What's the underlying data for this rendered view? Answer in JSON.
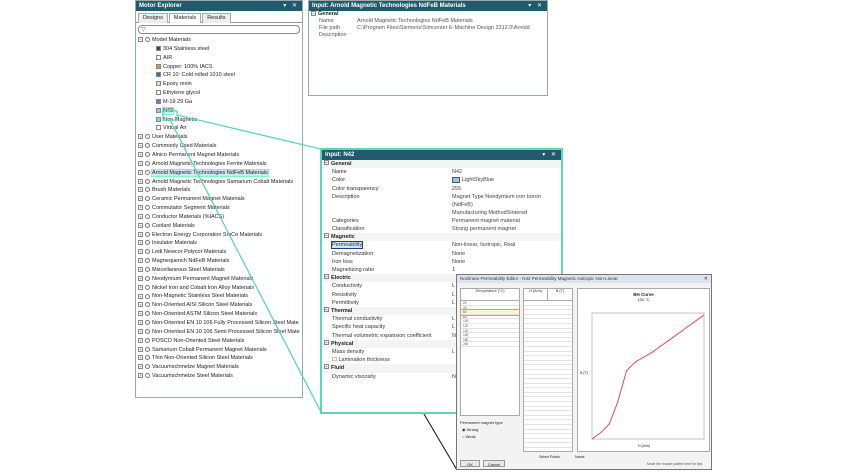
{
  "explorer": {
    "title": "Motor Explorer",
    "controls": "▾ ✕",
    "tabs": [
      "Designs",
      "Materials",
      "Results"
    ],
    "items": [
      {
        "label": "Model Materials",
        "level": 0,
        "expander": "−",
        "icon": "gear"
      },
      {
        "label": "304 Stainless steel",
        "level": 2,
        "swatch": "#444444"
      },
      {
        "label": "AIR",
        "level": 2,
        "swatch": "#ffffff"
      },
      {
        "label": "Copper: 100% IACS",
        "level": 2,
        "swatch": "#d19a4a"
      },
      {
        "label": "CR 10: Cold rolled 1010 steel",
        "level": 2,
        "swatch": "#1a7bb0"
      },
      {
        "label": "Epoxy resin",
        "level": 2,
        "swatch": "#e6e0c8"
      },
      {
        "label": "Ethylene glycol",
        "level": 2,
        "swatch": "#ffffff"
      },
      {
        "label": "M-19 29 Ga",
        "level": 2,
        "swatch": "#8a6cc0"
      },
      {
        "label": "N42",
        "level": 2,
        "swatch": "#8ec9ea",
        "selected": true
      },
      {
        "label": "Non-Magnetic",
        "level": 2,
        "swatch": "#6ee0d8"
      },
      {
        "label": "Virtual Air",
        "level": 2,
        "swatch": "#ffffff"
      },
      {
        "label": "User Materials",
        "level": 0,
        "expander": "+",
        "icon": "gear"
      },
      {
        "label": "Commonly Used Materials",
        "level": 0,
        "expander": "+",
        "icon": "gear"
      },
      {
        "label": "Alnico Permanent Magnet Materials",
        "level": 0,
        "expander": "+",
        "icon": "gear"
      },
      {
        "label": "Arnold Magnetic Technologies Ferrite Materials",
        "level": 0,
        "expander": "+",
        "icon": "gear"
      },
      {
        "label": "Arnold Magnetic Technologies NdFeB Materials",
        "level": 0,
        "expander": "+",
        "icon": "gear",
        "selected": true
      },
      {
        "label": "Arnold Magnetic Technologies Samarium Cobalt Materials",
        "level": 0,
        "expander": "+",
        "icon": "gear"
      },
      {
        "label": "Brush Materials",
        "level": 0,
        "expander": "+",
        "icon": "gear"
      },
      {
        "label": "Ceramic Permanent Magnet Materials",
        "level": 0,
        "expander": "+",
        "icon": "gear"
      },
      {
        "label": "Commutator Segment Materials",
        "level": 0,
        "expander": "+",
        "icon": "gear"
      },
      {
        "label": "Conductor Materials (%IACS)",
        "level": 0,
        "expander": "+",
        "icon": "gear"
      },
      {
        "label": "Coolant Materials",
        "level": 0,
        "expander": "+",
        "icon": "gear"
      },
      {
        "label": "Electron Energy Corporation SmCo Materials",
        "level": 0,
        "expander": "+",
        "icon": "gear"
      },
      {
        "label": "Insulator Materials",
        "level": 0,
        "expander": "+",
        "icon": "gear"
      },
      {
        "label": "Lodi Newcor Polycor Materials",
        "level": 0,
        "expander": "+",
        "icon": "gear"
      },
      {
        "label": "Magnequench NdFeB Materials",
        "level": 0,
        "expander": "+",
        "icon": "gear"
      },
      {
        "label": "Miscellaneous Steel Materials",
        "level": 0,
        "expander": "+",
        "icon": "gear"
      },
      {
        "label": "Neodymium Permanent Magnet Materials",
        "level": 0,
        "expander": "+",
        "icon": "gear"
      },
      {
        "label": "Nickel Iron and Cobalt Iron Alloy Materials",
        "level": 0,
        "expander": "+",
        "icon": "gear"
      },
      {
        "label": "Non-Magnetic Stainless Steel Materials",
        "level": 0,
        "expander": "+",
        "icon": "gear"
      },
      {
        "label": "Non-Oriented AISI Silicon Steel Materials",
        "level": 0,
        "expander": "+",
        "icon": "gear"
      },
      {
        "label": "Non-Oriented ASTM Silicon Steel Materials",
        "level": 0,
        "expander": "+",
        "icon": "gear"
      },
      {
        "label": "Non-Oriented EN 10 106 Fully Processed Silicon Steel Mate",
        "level": 0,
        "expander": "+",
        "icon": "gear"
      },
      {
        "label": "Non-Oriented EN 10 106 Semi Processed Silicon Steel Mate",
        "level": 0,
        "expander": "+",
        "icon": "gear"
      },
      {
        "label": "POSCO Non-Oriented Steel Materials",
        "level": 0,
        "expander": "+",
        "icon": "gear"
      },
      {
        "label": "Samarium Cobalt Permanent Magnet Materials",
        "level": 0,
        "expander": "+",
        "icon": "gear"
      },
      {
        "label": "Thin Non-Oriented Silicon Steel Materials",
        "level": 0,
        "expander": "+",
        "icon": "gear"
      },
      {
        "label": "Vacuumschmelze Magnet Materials",
        "level": 0,
        "expander": "+",
        "icon": "gear"
      },
      {
        "label": "Vacuumschmelze Steel Materials",
        "level": 0,
        "expander": "+",
        "icon": "gear"
      }
    ]
  },
  "input_top": {
    "title": "Input: Arnold Magnetic Technologies NdFeB Materials",
    "controls": "▾ ✕",
    "section": "General",
    "rows": [
      {
        "k": "Name",
        "v": "Arnold Magnetic Technologies NdFeB Materials"
      },
      {
        "k": "File path",
        "v": "C:\\Program Files\\Siemens\\Simcenter E-Machine Design 2312.0\\Arnold"
      },
      {
        "k": "Description",
        "v": ""
      }
    ]
  },
  "input_n42": {
    "title": "Input: N42",
    "controls": "▾ ✕",
    "rows": [
      {
        "group": "General"
      },
      {
        "k": "Name",
        "v": "N42"
      },
      {
        "k": "Color",
        "v": "LightSkyBlue",
        "swatch": "#8ec9ea"
      },
      {
        "k": "Color transparency",
        "v": "255"
      },
      {
        "k": "Description",
        "v": "Magnet Type Neodymium iron boron (NdFeB)",
        "v2": "Manufacturing MethodSintered"
      },
      {
        "k": "Categories",
        "v": "Permanent magnet material"
      },
      {
        "k": "Classification",
        "v": "Strong permanent magnet"
      },
      {
        "group": "Magnetic"
      },
      {
        "k": "Permeability",
        "v": "Non-linear, Isotropic, Real",
        "hl": true
      },
      {
        "k": "Demagnetization",
        "v": "None"
      },
      {
        "k": "Iron loss",
        "v": "None"
      },
      {
        "k": "Magnetizing ratio",
        "v": "1"
      },
      {
        "group": "Electric"
      },
      {
        "k": "Conductivity",
        "v": "L"
      },
      {
        "k": "Resistivity",
        "v": "L"
      },
      {
        "k": "Permittivity",
        "v": "L"
      },
      {
        "group": "Thermal"
      },
      {
        "k": "Thermal conductivity",
        "v": "L"
      },
      {
        "k": "Specific heat capacity",
        "v": "L"
      },
      {
        "k": "Thermal volumetric expansion coefficient",
        "v": "N"
      },
      {
        "group": "Physical"
      },
      {
        "k": "Mass density",
        "v": "L"
      },
      {
        "k": "Lamination thickness",
        "v": "",
        "check": true
      },
      {
        "group": "Fluid"
      },
      {
        "k": "Dynamic viscosity",
        "v": "N"
      }
    ]
  },
  "dialog": {
    "title": "Nonlinear Permeability Editor - N42 Permeability Magnetic Isotropic Non-Linear",
    "close": "✕",
    "temp_header": "Temperature (°C)",
    "temps": [
      "20",
      "40",
      "60",
      "80",
      "100",
      "120",
      "140",
      "160",
      "180",
      "200"
    ],
    "col1": "H (A/m)",
    "col2": "B (T)",
    "plot_title": "BH Curve",
    "plot_sub": "100 °C",
    "xlabel": "H (A/m)",
    "ylabel": "B (T)",
    "radio_label": "Permanent magnet type",
    "radio1": "Strong",
    "radio2": "Weak",
    "ok": "OK",
    "cancel": "Cancel",
    "select_label": "Select Points",
    "name_label": "Name",
    "footer_note": "Move the mouse pointer here for tips"
  },
  "chart_data": {
    "type": "line",
    "title": "BH Curve",
    "subtitle": "100 °C",
    "xlabel": "H (A/m)",
    "ylabel": "B (T)",
    "series": [
      {
        "values": [
          0,
          0.05,
          0.12,
          0.3,
          0.55,
          0.62,
          0.66,
          0.7,
          0.75,
          0.8,
          0.85,
          0.9,
          0.95,
          1.0
        ]
      }
    ]
  },
  "colors": {
    "title_bg": "#1f5a6e",
    "callout": "#5ed6b8",
    "selection": "#cfe8f5",
    "curve": "#e34b4b"
  }
}
